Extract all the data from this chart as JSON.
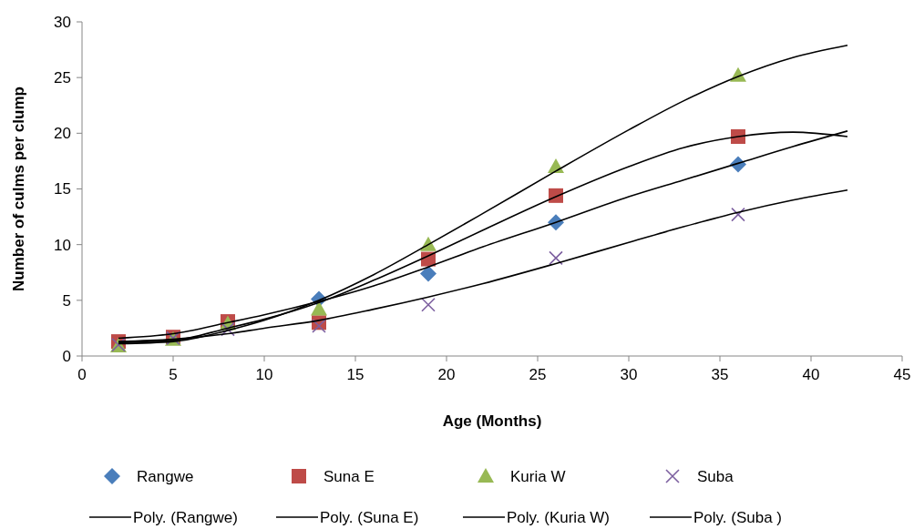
{
  "chart_data": {
    "type": "scatter",
    "xlabel": "Age (Months)",
    "ylabel": "Number of culms per clump",
    "xlim": [
      0,
      45
    ],
    "xticks": [
      0,
      5,
      10,
      15,
      20,
      25,
      30,
      35,
      40,
      45
    ],
    "ylim": [
      0,
      30
    ],
    "yticks": [
      0,
      5,
      10,
      15,
      20,
      25,
      30
    ],
    "grid": false,
    "legend": "bottom",
    "x": [
      2,
      5,
      8,
      13,
      19,
      26,
      36
    ],
    "series": [
      {
        "name": "Rangwe",
        "color": "#4a7ebb",
        "marker": "diamond",
        "values": [
          null,
          null,
          null,
          5.1,
          7.4,
          12.0,
          17.2
        ]
      },
      {
        "name": "Suna E",
        "color": "#be4b48",
        "marker": "square",
        "values": [
          1.3,
          1.7,
          3.1,
          3.0,
          8.7,
          14.4,
          19.7
        ]
      },
      {
        "name": "Kuria W",
        "color": "#98b954",
        "marker": "triangle",
        "values": [
          0.9,
          1.5,
          2.9,
          4.2,
          10.0,
          17.0,
          25.2
        ]
      },
      {
        "name": "Suba",
        "color": "#7d60a0",
        "marker": "cross",
        "values": [
          1.0,
          1.6,
          2.4,
          2.7,
          4.6,
          8.8,
          12.7
        ]
      },
      {
        "name": "Poly. (Rangwe)",
        "type": "line",
        "color": "#000000",
        "marker": "none",
        "x": [
          2,
          5,
          8,
          10,
          13,
          16,
          19,
          22,
          26,
          30,
          33,
          36,
          39,
          42
        ],
        "values": [
          1.6,
          2.0,
          3.0,
          3.7,
          4.9,
          6.3,
          8.0,
          9.8,
          12.0,
          14.3,
          15.8,
          17.3,
          18.8,
          20.2
        ]
      },
      {
        "name": "Poly. (Suna E)",
        "type": "line",
        "color": "#000000",
        "marker": "none",
        "x": [
          2,
          5,
          8,
          10,
          13,
          16,
          19,
          22,
          26,
          30,
          33,
          36,
          39,
          42
        ],
        "values": [
          1.2,
          1.4,
          2.5,
          3.3,
          4.8,
          6.8,
          9.0,
          11.3,
          14.3,
          17.0,
          18.7,
          19.7,
          20.1,
          19.7
        ]
      },
      {
        "name": "Poly. (Kuria W)",
        "type": "line",
        "color": "#000000",
        "marker": "none",
        "x": [
          2,
          5,
          8,
          10,
          13,
          16,
          19,
          22,
          26,
          30,
          33,
          36,
          39,
          42
        ],
        "values": [
          1.1,
          1.3,
          2.3,
          3.2,
          5.0,
          7.3,
          10.0,
          12.8,
          16.6,
          20.3,
          22.9,
          25.1,
          26.8,
          27.9
        ]
      },
      {
        "name": "Poly. (Suba )",
        "type": "line",
        "color": "#000000",
        "marker": "none",
        "x": [
          2,
          5,
          8,
          10,
          13,
          16,
          19,
          22,
          26,
          30,
          33,
          36,
          39,
          42
        ],
        "values": [
          1.3,
          1.5,
          2.0,
          2.5,
          3.2,
          4.2,
          5.3,
          6.5,
          8.3,
          10.2,
          11.6,
          12.9,
          14.0,
          14.9
        ]
      }
    ]
  }
}
